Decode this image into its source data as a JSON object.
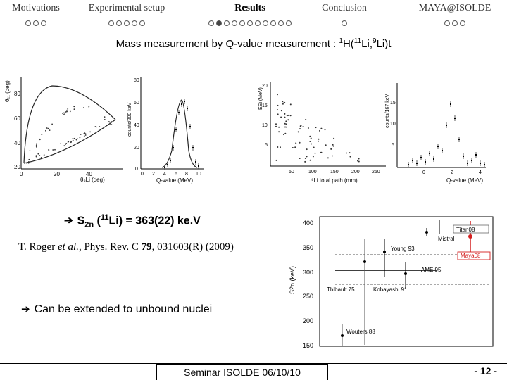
{
  "nav": [
    {
      "label": "Motivations",
      "dots": [
        0,
        0,
        0
      ],
      "active": false
    },
    {
      "label": "Experimental setup",
      "dots": [
        0,
        0,
        0,
        0,
        0
      ],
      "active": false
    },
    {
      "label": "Results",
      "dots": [
        0,
        1,
        0,
        0,
        0,
        0,
        0,
        0,
        0,
        0,
        0
      ],
      "active": true
    },
    {
      "label": "Conclusion",
      "dots": [
        0
      ],
      "active": false
    },
    {
      "label": "MAYA@ISOLDE",
      "dots": [
        0,
        0,
        0
      ],
      "active": false
    }
  ],
  "subtitle": {
    "prefix": "Mass measurement by Q-value measurement : ",
    "s1": "1",
    "t1": "H(",
    "s2": "11",
    "t2": "Li,",
    "s3": "9",
    "t3": "Li)t"
  },
  "plots": {
    "kinematics": {
      "ylabel": "θ₁₁ (deg)",
      "xlabel": "θ₉Li (deg)",
      "yticks": [
        "80",
        "60",
        "40",
        "20"
      ],
      "xticks": [
        "0",
        "20",
        "40"
      ]
    },
    "qvalue": {
      "ylabel": "counts/200 keV",
      "xlabel": "Q-value (MeV)",
      "yticks": [
        "80",
        "60",
        "40",
        "20",
        "0"
      ],
      "xticks": [
        "0",
        "2",
        "4",
        "6",
        "8",
        "10"
      ]
    },
    "energy": {
      "ylabel": "ESi (MeV)",
      "xlabel": "⁹Li total path (mm)",
      "yticks": [
        "20",
        "15",
        "10",
        "5"
      ],
      "xticks": [
        "50",
        "100",
        "150",
        "200",
        "250"
      ]
    },
    "qvalue2": {
      "ylabel": "counts/167 keV",
      "xlabel": "Q-value (MeV)",
      "yticks": [
        "15",
        "10",
        "5"
      ],
      "xticks": [
        "0",
        "2",
        "4"
      ]
    }
  },
  "result": {
    "arrow": "➔",
    "label": "S",
    "sub": "2n",
    "open": " (",
    "sup": "11",
    "rest": "Li) = 363(22) ke.V"
  },
  "reference": {
    "authors": "T. Roger ",
    "etal": "et al.",
    "journal": ", Phys. Rev. C ",
    "volume": "79",
    "rest": ", 031603(R) (2009)"
  },
  "unbound": {
    "arrow": "➔",
    "text": "Can be extended to unbound nuclei"
  },
  "s2n_chart": {
    "ylabel": "S2n (keV)",
    "yticks": [
      "400",
      "350",
      "300",
      "250",
      "200",
      "150"
    ],
    "labels": [
      "Mistral",
      "Titan08",
      "Young 93",
      "Maya08",
      "AME 95",
      "Thibault 75",
      "Kobayashi 91",
      "Wouters 88"
    ],
    "accent": "#d42020"
  },
  "footer": {
    "seminar": "Seminar ISOLDE 06/10/10",
    "page": "- 12 -"
  }
}
